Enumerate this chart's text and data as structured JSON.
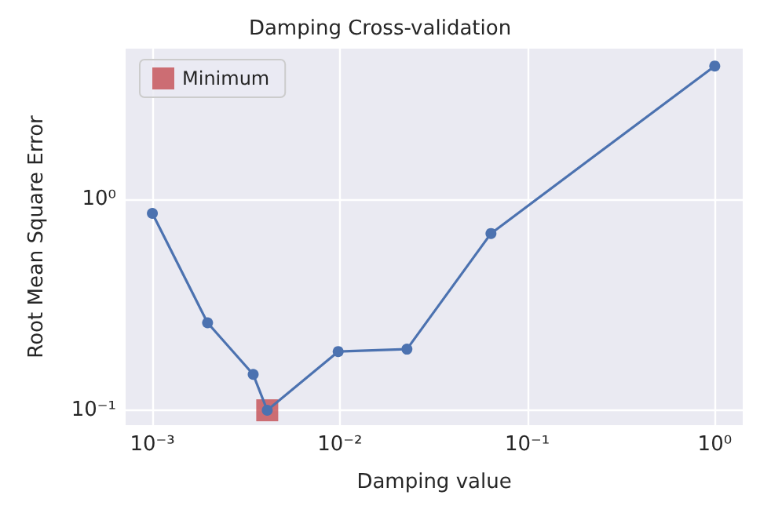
{
  "chart_data": {
    "type": "line",
    "title": "Damping Cross-validation",
    "xlabel": "Damping value",
    "ylabel": "Root Mean Square Error",
    "x": [
      0.001,
      0.00197,
      0.00345,
      0.0041,
      0.0098,
      0.0228,
      0.064,
      1
    ],
    "series": [
      {
        "color": "#4c72b0",
        "values": [
          0.86,
          0.26,
          0.148,
          0.1,
          0.19,
          0.195,
          0.69,
          4.3
        ],
        "marker": "circle"
      },
      {
        "name": "Minimum",
        "type": "scatter",
        "color": "#c44e52",
        "x": [
          0.0041
        ],
        "values": [
          0.1
        ],
        "marker": "square"
      }
    ],
    "log": "xy",
    "xlim": [
      0.00072,
      1.41
    ],
    "ylim": [
      0.085,
      5.2
    ],
    "xticks": [
      {
        "value": 0.001,
        "label": "10⁻³"
      },
      {
        "value": 0.01,
        "label": "10⁻²"
      },
      {
        "value": 0.1,
        "label": "10⁻¹"
      },
      {
        "value": 1,
        "label": "10⁰"
      }
    ],
    "yticks": [
      {
        "value": 0.1,
        "label": "10⁻¹"
      },
      {
        "value": 1,
        "label": "10⁰"
      }
    ],
    "grid": true,
    "legend": "top left",
    "line_style": "solid"
  }
}
